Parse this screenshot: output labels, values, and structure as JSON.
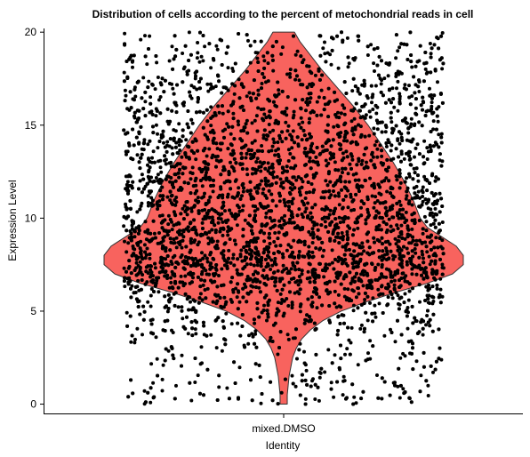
{
  "chart_data": {
    "type": "violin",
    "title": "Distribution of cells according to the percent of metochondrial reads in cell",
    "xlabel": "Identity",
    "ylabel": "Expression Level",
    "categories": [
      "mixed.DMSO"
    ],
    "ylim": [
      -0.5,
      20.2
    ],
    "yticks": [
      0,
      5,
      10,
      15,
      20
    ],
    "yticklabels": [
      "0",
      "5",
      "10",
      "15",
      "20"
    ],
    "grid": false,
    "legend": "none",
    "colors": {
      "violin_fill": "#F8635E",
      "violin_stroke": "#333333",
      "points": "#000000"
    },
    "series": [
      {
        "category": "mixed.DMSO",
        "range": [
          0,
          20
        ],
        "peak": 7.8,
        "density_profile": [
          {
            "y": 0.0,
            "width": 0.02
          },
          {
            "y": 0.5,
            "width": 0.02
          },
          {
            "y": 1.0,
            "width": 0.025
          },
          {
            "y": 1.5,
            "width": 0.03
          },
          {
            "y": 2.0,
            "width": 0.04
          },
          {
            "y": 2.5,
            "width": 0.05
          },
          {
            "y": 3.0,
            "width": 0.07
          },
          {
            "y": 3.5,
            "width": 0.1
          },
          {
            "y": 4.0,
            "width": 0.15
          },
          {
            "y": 4.5,
            "width": 0.22
          },
          {
            "y": 5.0,
            "width": 0.32
          },
          {
            "y": 5.5,
            "width": 0.46
          },
          {
            "y": 6.0,
            "width": 0.62
          },
          {
            "y": 6.5,
            "width": 0.8
          },
          {
            "y": 7.0,
            "width": 0.94
          },
          {
            "y": 7.5,
            "width": 1.0
          },
          {
            "y": 8.0,
            "width": 1.0
          },
          {
            "y": 8.5,
            "width": 0.96
          },
          {
            "y": 9.0,
            "width": 0.88
          },
          {
            "y": 9.5,
            "width": 0.8
          },
          {
            "y": 10.0,
            "width": 0.76
          },
          {
            "y": 11.0,
            "width": 0.72
          },
          {
            "y": 12.0,
            "width": 0.67
          },
          {
            "y": 13.0,
            "width": 0.61
          },
          {
            "y": 14.0,
            "width": 0.54
          },
          {
            "y": 15.0,
            "width": 0.47
          },
          {
            "y": 16.0,
            "width": 0.39
          },
          {
            "y": 17.0,
            "width": 0.3
          },
          {
            "y": 18.0,
            "width": 0.21
          },
          {
            "y": 19.0,
            "width": 0.13
          },
          {
            "y": 19.5,
            "width": 0.09
          },
          {
            "y": 20.0,
            "width": 0.06
          }
        ]
      }
    ]
  }
}
